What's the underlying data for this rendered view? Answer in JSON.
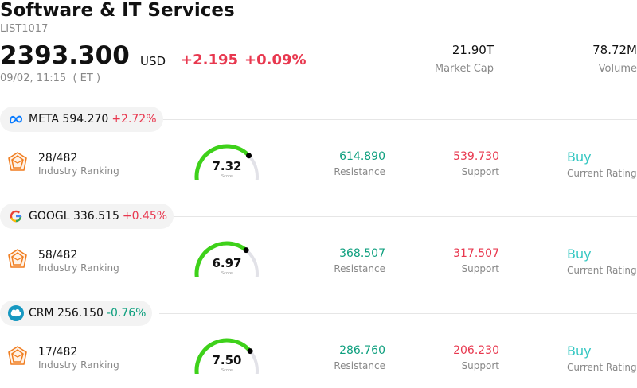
{
  "header": {
    "title": "Software & IT Services",
    "code": "LIST1017",
    "price": "2393.300",
    "currency": "USD",
    "change": "+2.195",
    "change_pct": "+0.09%",
    "timestamp": "09/02, 11:15  ( ET )",
    "change_color": "#e8384f"
  },
  "stats": {
    "market_cap": {
      "value": "21.90T",
      "label": "Market Cap"
    },
    "volume": {
      "value": "78.72M",
      "label": "Volume"
    }
  },
  "colors": {
    "up": "#e8384f",
    "down": "#0e9f7e",
    "gauge": "#3ed11a",
    "rating": "#35c7c2"
  },
  "stocks": [
    {
      "logo_icon": "meta-logo-icon",
      "symbol_price": "META 594.270",
      "pct": "+2.72%",
      "direction": "up",
      "rank": "28/482",
      "rank_label": "Industry Ranking",
      "score": "7.32",
      "score_value": 7.32,
      "score_label": "Score",
      "resistance": "614.890",
      "resistance_label": "Resistance",
      "support": "539.730",
      "support_label": "Support",
      "rating": "Buy",
      "rating_label": "Current Rating"
    },
    {
      "logo_icon": "google-logo-icon",
      "symbol_price": "GOOGL 336.515",
      "pct": "+0.45%",
      "direction": "up",
      "rank": "58/482",
      "rank_label": "Industry Ranking",
      "score": "6.97",
      "score_value": 6.97,
      "score_label": "Score",
      "resistance": "368.507",
      "resistance_label": "Resistance",
      "support": "317.507",
      "support_label": "Support",
      "rating": "Buy",
      "rating_label": "Current Rating"
    },
    {
      "logo_icon": "salesforce-logo-icon",
      "symbol_price": "CRM 256.150",
      "pct": "-0.76%",
      "direction": "down",
      "rank": "17/482",
      "rank_label": "Industry Ranking",
      "score": "7.50",
      "score_value": 7.5,
      "score_label": "Score",
      "resistance": "286.760",
      "resistance_label": "Resistance",
      "support": "206.230",
      "support_label": "Support",
      "rating": "Buy",
      "rating_label": "Current Rating"
    }
  ]
}
